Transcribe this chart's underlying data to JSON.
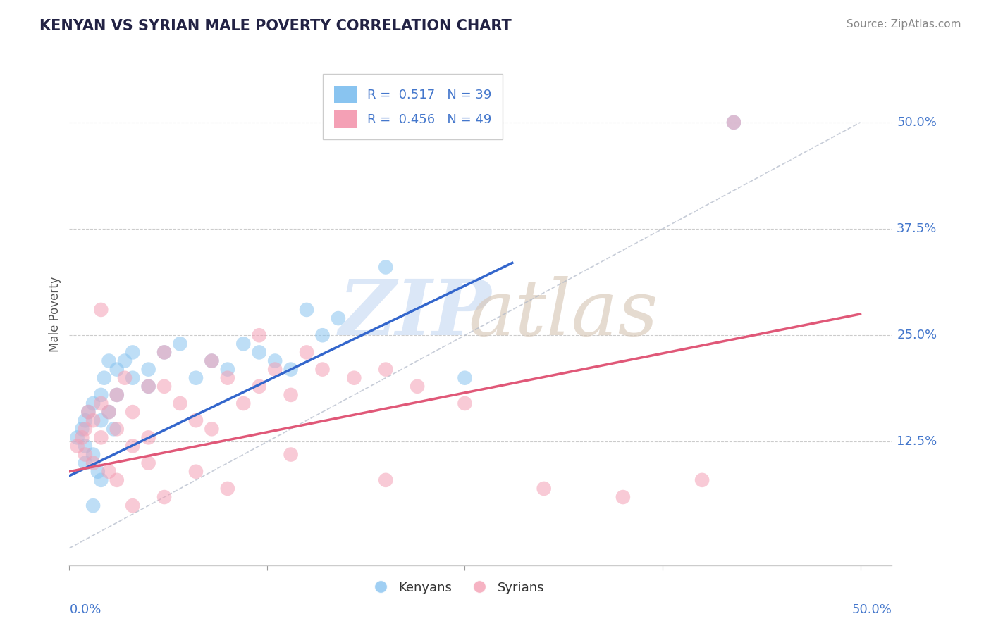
{
  "title": "KENYAN VS SYRIAN MALE POVERTY CORRELATION CHART",
  "source": "Source: ZipAtlas.com",
  "ylabel": "Male Poverty",
  "y_ticks": [
    0.0,
    0.125,
    0.25,
    0.375,
    0.5
  ],
  "y_tick_labels": [
    "",
    "12.5%",
    "25.0%",
    "37.5%",
    "50.0%"
  ],
  "x_range": [
    0.0,
    0.52
  ],
  "y_range": [
    -0.02,
    0.57
  ],
  "kenyan_R": 0.517,
  "kenyan_N": 39,
  "syrian_R": 0.456,
  "syrian_N": 49,
  "kenyan_color": "#89c4f0",
  "syrian_color": "#f4a0b5",
  "kenyan_line_color": "#3366cc",
  "syrian_line_color": "#e05878",
  "kenyan_line_x0": 0.0,
  "kenyan_line_y0": 0.085,
  "kenyan_line_x1": 0.28,
  "kenyan_line_y1": 0.335,
  "syrian_line_x0": 0.0,
  "syrian_line_y0": 0.09,
  "syrian_line_x1": 0.5,
  "syrian_line_y1": 0.275,
  "dashed_line_x": [
    0.0,
    0.5
  ],
  "dashed_line_y": [
    0.0,
    0.5
  ],
  "kenyan_scatter_x": [
    0.005,
    0.008,
    0.01,
    0.01,
    0.01,
    0.012,
    0.015,
    0.015,
    0.018,
    0.02,
    0.02,
    0.02,
    0.022,
    0.025,
    0.025,
    0.028,
    0.03,
    0.03,
    0.035,
    0.04,
    0.04,
    0.05,
    0.05,
    0.06,
    0.07,
    0.08,
    0.09,
    0.1,
    0.11,
    0.12,
    0.13,
    0.14,
    0.15,
    0.16,
    0.17,
    0.2,
    0.25,
    0.015,
    0.42
  ],
  "kenyan_scatter_y": [
    0.13,
    0.14,
    0.15,
    0.12,
    0.1,
    0.16,
    0.17,
    0.11,
    0.09,
    0.18,
    0.15,
    0.08,
    0.2,
    0.22,
    0.16,
    0.14,
    0.21,
    0.18,
    0.22,
    0.23,
    0.2,
    0.21,
    0.19,
    0.23,
    0.24,
    0.2,
    0.22,
    0.21,
    0.24,
    0.23,
    0.22,
    0.21,
    0.28,
    0.25,
    0.27,
    0.33,
    0.2,
    0.05,
    0.5
  ],
  "syrian_scatter_x": [
    0.005,
    0.008,
    0.01,
    0.01,
    0.012,
    0.015,
    0.015,
    0.02,
    0.02,
    0.025,
    0.025,
    0.03,
    0.03,
    0.035,
    0.04,
    0.04,
    0.05,
    0.05,
    0.05,
    0.06,
    0.06,
    0.07,
    0.08,
    0.09,
    0.09,
    0.1,
    0.11,
    0.12,
    0.13,
    0.14,
    0.15,
    0.16,
    0.18,
    0.2,
    0.22,
    0.02,
    0.03,
    0.04,
    0.06,
    0.08,
    0.1,
    0.14,
    0.2,
    0.3,
    0.35,
    0.4,
    0.42,
    0.25,
    0.12
  ],
  "syrian_scatter_y": [
    0.12,
    0.13,
    0.11,
    0.14,
    0.16,
    0.15,
    0.1,
    0.17,
    0.13,
    0.16,
    0.09,
    0.18,
    0.14,
    0.2,
    0.16,
    0.12,
    0.19,
    0.13,
    0.1,
    0.23,
    0.19,
    0.17,
    0.15,
    0.22,
    0.14,
    0.2,
    0.17,
    0.19,
    0.21,
    0.18,
    0.23,
    0.21,
    0.2,
    0.21,
    0.19,
    0.28,
    0.08,
    0.05,
    0.06,
    0.09,
    0.07,
    0.11,
    0.08,
    0.07,
    0.06,
    0.08,
    0.5,
    0.17,
    0.25
  ]
}
